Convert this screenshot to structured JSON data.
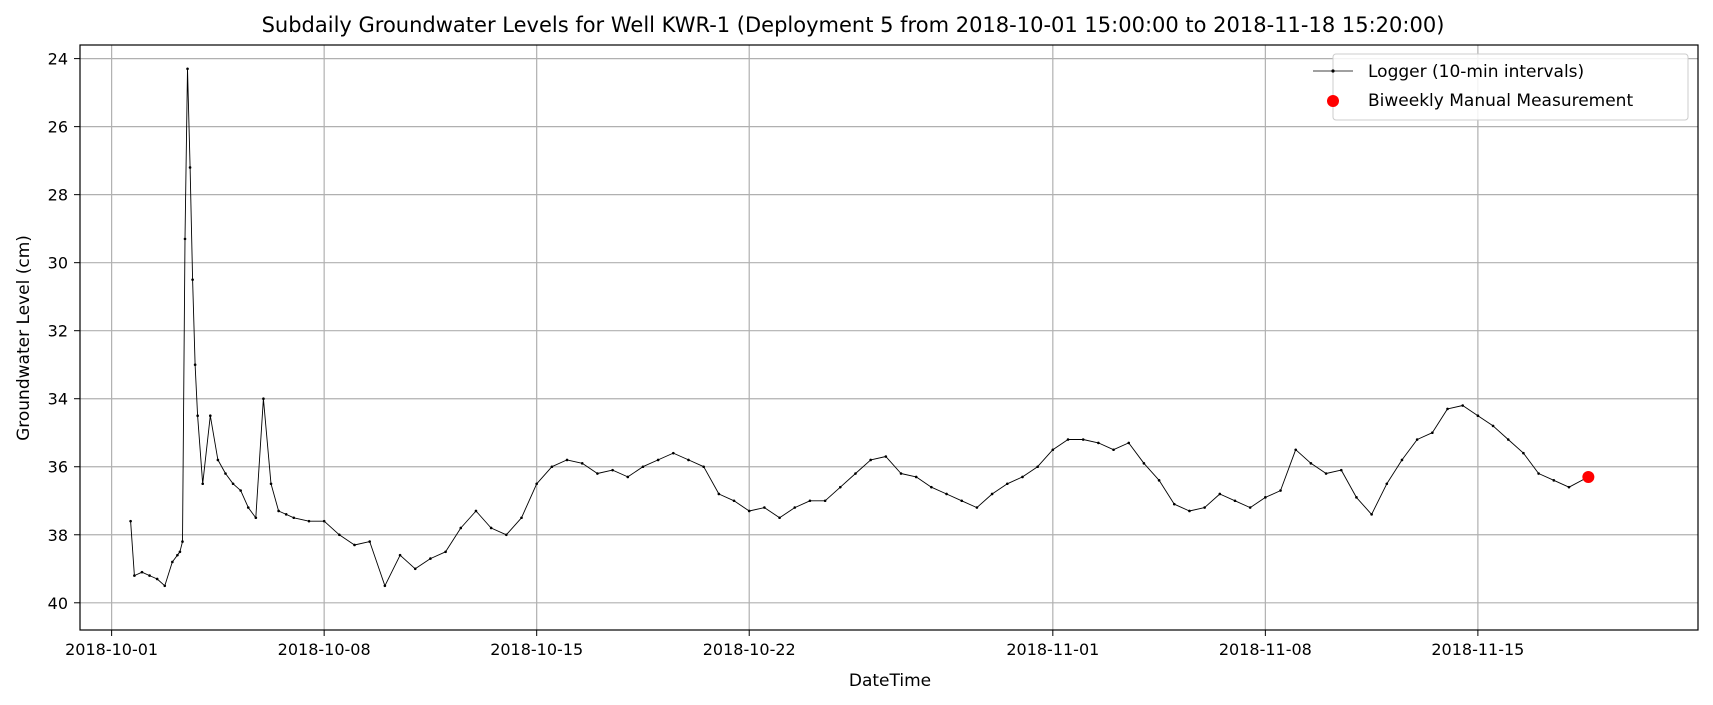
{
  "chart_data": {
    "type": "line",
    "title": "Subdaily Groundwater Levels for Well KWR-1 (Deployment 5 from 2018-10-01 15:00:00 to 2018-11-18 15:20:00)",
    "xlabel": "DateTime",
    "ylabel": "Groundwater Level (cm)",
    "x_type": "datetime",
    "xlim": [
      "2018-09-29T23:00",
      "2018-11-22T06:00"
    ],
    "ylim": [
      40.8,
      23.6
    ],
    "y_inverted": true,
    "grid": true,
    "legend_position": "top-right",
    "x_ticks": [
      {
        "value": "2018-10-01",
        "label": "2018-10-01"
      },
      {
        "value": "2018-10-08",
        "label": "2018-10-08"
      },
      {
        "value": "2018-10-15",
        "label": "2018-10-15"
      },
      {
        "value": "2018-10-22",
        "label": "2018-10-22"
      },
      {
        "value": "2018-11-01",
        "label": "2018-11-01"
      },
      {
        "value": "2018-11-08",
        "label": "2018-11-08"
      },
      {
        "value": "2018-11-15",
        "label": "2018-11-15"
      }
    ],
    "y_ticks": [
      24,
      26,
      28,
      30,
      32,
      34,
      36,
      38,
      40
    ],
    "series": [
      {
        "name": "Logger (10-min intervals)",
        "kind": "line",
        "color": "#000000",
        "x": [
          "2018-10-01T15:00",
          "2018-10-01T18:00",
          "2018-10-02T00:00",
          "2018-10-02T06:00",
          "2018-10-02T12:00",
          "2018-10-02T18:00",
          "2018-10-03T00:00",
          "2018-10-03T04:00",
          "2018-10-03T06:00",
          "2018-10-03T08:00",
          "2018-10-03T10:00",
          "2018-10-03T12:00",
          "2018-10-03T14:00",
          "2018-10-03T16:00",
          "2018-10-03T18:00",
          "2018-10-03T20:00",
          "2018-10-04T00:00",
          "2018-10-04T06:00",
          "2018-10-04T12:00",
          "2018-10-04T18:00",
          "2018-10-05T00:00",
          "2018-10-05T06:00",
          "2018-10-05T12:00",
          "2018-10-05T18:00",
          "2018-10-06T00:00",
          "2018-10-06T06:00",
          "2018-10-06T12:00",
          "2018-10-06T18:00",
          "2018-10-07T00:00",
          "2018-10-07T12:00",
          "2018-10-08T00:00",
          "2018-10-08T12:00",
          "2018-10-09T00:00",
          "2018-10-09T12:00",
          "2018-10-10T00:00",
          "2018-10-10T12:00",
          "2018-10-11T00:00",
          "2018-10-11T12:00",
          "2018-10-12T00:00",
          "2018-10-12T12:00",
          "2018-10-13T00:00",
          "2018-10-13T12:00",
          "2018-10-14T00:00",
          "2018-10-14T12:00",
          "2018-10-15T00:00",
          "2018-10-15T12:00",
          "2018-10-16T00:00",
          "2018-10-16T12:00",
          "2018-10-17T00:00",
          "2018-10-17T12:00",
          "2018-10-18T00:00",
          "2018-10-18T12:00",
          "2018-10-19T00:00",
          "2018-10-19T12:00",
          "2018-10-20T00:00",
          "2018-10-20T12:00",
          "2018-10-21T00:00",
          "2018-10-21T12:00",
          "2018-10-22T00:00",
          "2018-10-22T12:00",
          "2018-10-23T00:00",
          "2018-10-23T12:00",
          "2018-10-24T00:00",
          "2018-10-24T12:00",
          "2018-10-25T00:00",
          "2018-10-25T12:00",
          "2018-10-26T00:00",
          "2018-10-26T12:00",
          "2018-10-27T00:00",
          "2018-10-27T12:00",
          "2018-10-28T00:00",
          "2018-10-28T12:00",
          "2018-10-29T00:00",
          "2018-10-29T12:00",
          "2018-10-30T00:00",
          "2018-10-30T12:00",
          "2018-10-31T00:00",
          "2018-10-31T12:00",
          "2018-11-01T00:00",
          "2018-11-01T12:00",
          "2018-11-02T00:00",
          "2018-11-02T12:00",
          "2018-11-03T00:00",
          "2018-11-03T12:00",
          "2018-11-04T00:00",
          "2018-11-04T12:00",
          "2018-11-05T00:00",
          "2018-11-05T12:00",
          "2018-11-06T00:00",
          "2018-11-06T12:00",
          "2018-11-07T00:00",
          "2018-11-07T12:00",
          "2018-11-08T00:00",
          "2018-11-08T12:00",
          "2018-11-09T00:00",
          "2018-11-09T12:00",
          "2018-11-10T00:00",
          "2018-11-10T12:00",
          "2018-11-11T00:00",
          "2018-11-11T12:00",
          "2018-11-12T00:00",
          "2018-11-12T12:00",
          "2018-11-13T00:00",
          "2018-11-13T12:00",
          "2018-11-14T00:00",
          "2018-11-14T12:00",
          "2018-11-15T00:00",
          "2018-11-15T12:00",
          "2018-11-16T00:00",
          "2018-11-16T12:00",
          "2018-11-17T00:00",
          "2018-11-17T12:00",
          "2018-11-18T00:00",
          "2018-11-18T15:20"
        ],
        "y": [
          37.6,
          39.2,
          39.1,
          39.2,
          39.3,
          39.5,
          38.8,
          38.6,
          38.5,
          38.2,
          29.3,
          24.3,
          27.2,
          30.5,
          33.0,
          34.5,
          36.5,
          34.5,
          35.8,
          36.2,
          36.5,
          36.7,
          37.2,
          37.5,
          34.0,
          36.5,
          37.3,
          37.4,
          37.5,
          37.6,
          37.6,
          38.0,
          38.3,
          38.2,
          39.5,
          38.6,
          39.0,
          38.7,
          38.5,
          37.8,
          37.3,
          37.8,
          38.0,
          37.5,
          36.5,
          36.0,
          35.8,
          35.9,
          36.2,
          36.1,
          36.3,
          36.0,
          35.8,
          35.6,
          35.8,
          36.0,
          36.8,
          37.0,
          37.3,
          37.2,
          37.5,
          37.2,
          37.0,
          37.0,
          36.6,
          36.2,
          35.8,
          35.7,
          36.2,
          36.3,
          36.6,
          36.8,
          37.0,
          37.2,
          36.8,
          36.5,
          36.3,
          36.0,
          35.5,
          35.2,
          35.2,
          35.3,
          35.5,
          35.3,
          35.9,
          36.4,
          37.1,
          37.3,
          37.2,
          36.8,
          37.0,
          37.2,
          36.9,
          36.7,
          35.5,
          35.9,
          36.2,
          36.1,
          36.9,
          37.4,
          36.5,
          35.8,
          35.2,
          35.0,
          34.3,
          34.2,
          34.5,
          34.8,
          35.2,
          35.6,
          36.2,
          36.4,
          36.6,
          36.3
        ]
      },
      {
        "name": "Biweekly Manual Measurement",
        "kind": "scatter",
        "color": "#ff0000",
        "x": [
          "2018-11-18T15:20"
        ],
        "y": [
          36.3
        ]
      }
    ]
  }
}
